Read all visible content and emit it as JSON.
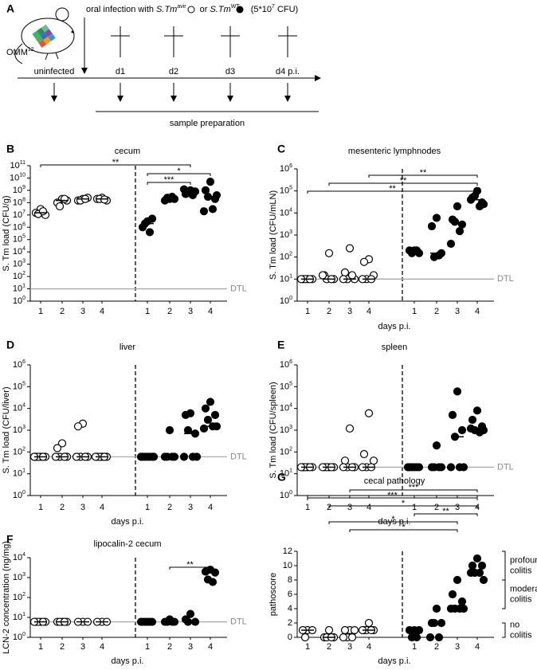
{
  "schematic": {
    "panel": "A",
    "strain_label": "OMM",
    "strain_sup": "12",
    "infection": {
      "prefix": "oral infection with ",
      "strain1": "S.Tm",
      "sup1": "avir",
      "mid": " or ",
      "strain2": "S.Tm",
      "sup2": "WT",
      "dose": "(5*10",
      "dose_exp": "7",
      "dose_unit": " CFU)"
    },
    "timepoints": [
      "uninfected",
      "d1",
      "d2",
      "d3",
      "d4 p.i."
    ],
    "sampling": "sample preparation"
  },
  "chart_data": [
    {
      "type": "dotplot",
      "panel": "B",
      "title": "cecum",
      "y_label": "S. Tm load (CFU/g)",
      "log_scale": true,
      "categories": [
        "1",
        "2",
        "3",
        "4",
        "1",
        "2",
        "3",
        "4"
      ],
      "filled": [
        false,
        false,
        false,
        false,
        true,
        true,
        true,
        true
      ],
      "values": [
        [
          30000000.0,
          15000000.0,
          10000000.0,
          12000000.0,
          20000000.0
        ],
        [
          200000000.0,
          100000000.0,
          150000000.0,
          50000000.0,
          200000000.0
        ],
        [
          200000000.0,
          150000000.0,
          250000000.0,
          150000000.0,
          200000000.0
        ],
        [
          250000000.0,
          200000000.0,
          150000000.0,
          200000000.0,
          180000000.0
        ],
        [
          3000000.0,
          1000000.0,
          5000000.0,
          2000000.0,
          400000.0
        ],
        [
          200000000.0,
          150000000.0,
          200000000.0,
          250000000.0,
          300000000.0
        ],
        [
          1000000000.0,
          500000000.0,
          800000000.0,
          600000000.0,
          400000000.0,
          1200000000.0
        ],
        [
          5000000000.0,
          1000000000.0,
          200000000.0,
          300000000.0,
          30000000.0,
          20000000.0,
          400000000.0
        ]
      ],
      "medians": [
        15000000.0,
        150000000.0,
        200000000.0,
        200000000.0,
        2000000.0,
        200000000.0,
        700000000.0,
        300000000.0
      ],
      "ylim": [
        1,
        100000000000.0
      ],
      "yticks": [
        {
          "value": 1,
          "label": "10",
          "exponent": "0"
        },
        {
          "value": 10,
          "label": "10",
          "exponent": "1"
        },
        {
          "value": 100,
          "label": "10",
          "exponent": "2"
        },
        {
          "value": 1000.0,
          "label": "10",
          "exponent": "3"
        },
        {
          "value": 10000.0,
          "label": "10",
          "exponent": "4"
        },
        {
          "value": 100000.0,
          "label": "10",
          "exponent": "5"
        },
        {
          "value": 1000000.0,
          "label": "10",
          "exponent": "6"
        },
        {
          "value": 10000000.0,
          "label": "10",
          "exponent": "7"
        },
        {
          "value": 100000000.0,
          "label": "10",
          "exponent": "8"
        },
        {
          "value": 1000000000.0,
          "label": "10",
          "exponent": "9"
        },
        {
          "value": 10000000000.0,
          "label": "10",
          "exponent": "10"
        },
        {
          "value": 100000000000.0,
          "label": "10",
          "exponent": "11"
        }
      ],
      "dtl": {
        "value": 10,
        "label": "DTL"
      },
      "brackets": [
        {
          "from": 0,
          "to": 6,
          "label": "**"
        },
        {
          "from": 4,
          "to": 7,
          "label": "*"
        },
        {
          "from": 4,
          "to": 6,
          "label": "***"
        }
      ]
    },
    {
      "type": "dotplot",
      "panel": "C",
      "title": "mesenteric lymphnodes",
      "y_label": "S. Tm load (CFU/mLN)",
      "x_label": "days p.i.",
      "log_scale": true,
      "categories": [
        "1",
        "2",
        "3",
        "4",
        "1",
        "2",
        "3",
        "4"
      ],
      "filled": [
        false,
        false,
        false,
        false,
        true,
        true,
        true,
        true
      ],
      "values": [
        [
          10,
          10,
          10,
          10,
          10,
          10
        ],
        [
          150,
          15,
          10,
          10,
          10,
          15
        ],
        [
          250,
          20,
          10,
          10,
          15,
          10
        ],
        [
          80,
          60,
          15,
          10,
          10,
          10
        ],
        [
          200,
          200,
          150,
          150,
          200
        ],
        [
          6000,
          2500,
          150,
          100,
          120
        ],
        [
          20000,
          5000,
          3000,
          4000,
          1500,
          400
        ],
        [
          100000,
          50000,
          30000,
          60000,
          20000,
          40000,
          25000
        ]
      ],
      "medians": [
        10,
        10,
        10,
        10,
        180,
        150,
        3500,
        40000
      ],
      "ylim": [
        1,
        1000000.0
      ],
      "yticks": [
        {
          "value": 1,
          "label": "10",
          "exponent": "0"
        },
        {
          "value": 10,
          "label": "10",
          "exponent": "1"
        },
        {
          "value": 100,
          "label": "10",
          "exponent": "2"
        },
        {
          "value": 1000.0,
          "label": "10",
          "exponent": "3"
        },
        {
          "value": 10000.0,
          "label": "10",
          "exponent": "4"
        },
        {
          "value": 100000.0,
          "label": "10",
          "exponent": "5"
        },
        {
          "value": 1000000.0,
          "label": "10",
          "exponent": "6"
        }
      ],
      "dtl": {
        "value": 10,
        "label": "DTL"
      },
      "brackets": [
        {
          "from": 3,
          "to": 7,
          "label": "**"
        },
        {
          "from": 1,
          "to": 7,
          "label": "**"
        },
        {
          "from": 0,
          "to": 7,
          "label": "**"
        }
      ]
    },
    {
      "type": "dotplot",
      "panel": "D",
      "title": "liver",
      "y_label": "S. Tm load (CFU/liver)",
      "x_label": "days p.i.",
      "log_scale": true,
      "categories": [
        "1",
        "2",
        "3",
        "4",
        "1",
        "2",
        "3",
        "4"
      ],
      "filled": [
        false,
        false,
        false,
        false,
        true,
        true,
        true,
        true
      ],
      "values": [
        [
          60,
          60,
          60,
          60,
          60,
          60
        ],
        [
          250,
          150,
          60,
          60,
          60,
          60
        ],
        [
          2000,
          1500,
          60,
          60,
          60,
          60
        ],
        [
          60,
          60,
          60,
          60,
          60,
          60
        ],
        [
          60,
          60,
          60,
          60,
          60,
          60,
          60
        ],
        [
          1000,
          60,
          60,
          60,
          60
        ],
        [
          6000,
          5000,
          700,
          1000,
          60,
          60,
          60
        ],
        [
          20000,
          10000,
          5000,
          3000,
          1500,
          1200,
          1500
        ]
      ],
      "medians": [
        60,
        60,
        60,
        60,
        60,
        60,
        700,
        1500
      ],
      "ylim": [
        1,
        1000000.0
      ],
      "yticks": [
        {
          "value": 1,
          "label": "10",
          "exponent": "0"
        },
        {
          "value": 10,
          "label": "10",
          "exponent": "1"
        },
        {
          "value": 100,
          "label": "10",
          "exponent": "2"
        },
        {
          "value": 1000.0,
          "label": "10",
          "exponent": "3"
        },
        {
          "value": 10000.0,
          "label": "10",
          "exponent": "4"
        },
        {
          "value": 100000.0,
          "label": "10",
          "exponent": "5"
        },
        {
          "value": 1000000.0,
          "label": "10",
          "exponent": "6"
        }
      ],
      "dtl": {
        "value": 60,
        "label": "DTL"
      },
      "brackets": []
    },
    {
      "type": "dotplot",
      "panel": "E",
      "title": "spleen",
      "y_label": "S. Tm load (CFU/spleen)",
      "x_label": "days p.i.",
      "log_scale": true,
      "categories": [
        "1",
        "2",
        "3",
        "4",
        "1",
        "2",
        "3",
        "4"
      ],
      "filled": [
        false,
        false,
        false,
        false,
        true,
        true,
        true,
        true
      ],
      "values": [
        [
          20,
          20,
          20,
          20,
          20,
          20
        ],
        [
          20,
          20,
          20,
          20,
          20,
          20
        ],
        [
          1200,
          40,
          20,
          20,
          20,
          20
        ],
        [
          6000,
          80,
          40,
          20,
          20,
          20
        ],
        [
          20,
          20,
          20,
          20,
          20,
          20
        ],
        [
          200,
          20,
          20,
          20,
          20
        ],
        [
          60000,
          5000,
          1000,
          500,
          20,
          20,
          20
        ],
        [
          8000,
          3000,
          1500,
          1000,
          800,
          1200,
          1000
        ]
      ],
      "medians": [
        20,
        20,
        20,
        20,
        20,
        20,
        500,
        1200
      ],
      "ylim": [
        1,
        1000000.0
      ],
      "yticks": [
        {
          "value": 1,
          "label": "10",
          "exponent": "0"
        },
        {
          "value": 10,
          "label": "10",
          "exponent": "1"
        },
        {
          "value": 100,
          "label": "10",
          "exponent": "2"
        },
        {
          "value": 1000.0,
          "label": "10",
          "exponent": "3"
        },
        {
          "value": 10000.0,
          "label": "10",
          "exponent": "4"
        },
        {
          "value": 100000.0,
          "label": "10",
          "exponent": "5"
        },
        {
          "value": 1000000.0,
          "label": "10",
          "exponent": "6"
        }
      ],
      "dtl": {
        "value": 20,
        "label": "DTL"
      },
      "brackets": []
    },
    {
      "type": "dotplot",
      "panel": "F",
      "title": "lipocalin-2 cecum",
      "y_label": "LCN-2 concentration (ng/mg)",
      "x_label": "days p.i.",
      "log_scale": true,
      "categories": [
        "1",
        "2",
        "3",
        "4",
        "1",
        "2",
        "3",
        "4"
      ],
      "filled": [
        false,
        false,
        false,
        false,
        true,
        true,
        true,
        true
      ],
      "values": [
        [
          6,
          6,
          6,
          6,
          6,
          6
        ],
        [
          6,
          6,
          6,
          6,
          6
        ],
        [
          6,
          6,
          6
        ],
        [
          6,
          6,
          6
        ],
        [
          6,
          6,
          6,
          6,
          6,
          6
        ],
        [
          8,
          6,
          6,
          6,
          6
        ],
        [
          15,
          8,
          6,
          6
        ],
        [
          2500,
          2000,
          1800,
          800,
          600
        ]
      ],
      "medians": [
        6,
        6,
        6,
        6,
        6,
        6,
        6,
        1800
      ],
      "ylim": [
        1,
        10000.0
      ],
      "yticks": [
        {
          "value": 1,
          "label": "10",
          "exponent": "0"
        },
        {
          "value": 10,
          "label": "10",
          "exponent": "1"
        },
        {
          "value": 100,
          "label": "10",
          "exponent": "2"
        },
        {
          "value": 1000.0,
          "label": "10",
          "exponent": "3"
        },
        {
          "value": 10000.0,
          "label": "10",
          "exponent": "4"
        }
      ],
      "dtl": {
        "value": 6,
        "label": "DTL"
      },
      "brackets": [
        {
          "from": 5,
          "to": 7,
          "label": "**"
        }
      ]
    },
    {
      "type": "dotplot",
      "panel": "G",
      "title": "cecal pathology",
      "y_label": "pathoscore",
      "x_label": "days p.i.",
      "log_scale": false,
      "categories": [
        "1",
        "2",
        "3",
        "4",
        "1",
        "2",
        "3",
        "4"
      ],
      "filled": [
        false,
        false,
        false,
        false,
        true,
        true,
        true,
        true
      ],
      "values": [
        [
          1,
          1,
          1,
          0
        ],
        [
          1,
          0,
          0,
          0,
          0
        ],
        [
          1,
          1,
          1,
          0,
          0,
          0
        ],
        [
          2,
          1,
          1,
          1,
          1,
          1
        ],
        [
          1,
          1,
          1,
          0,
          0
        ],
        [
          4,
          2,
          2,
          2,
          0,
          0
        ],
        [
          8,
          6,
          5,
          4,
          4,
          4,
          4
        ],
        [
          11,
          10,
          10,
          9,
          9,
          9,
          8
        ]
      ],
      "medians": [
        1,
        0,
        0.5,
        1,
        1,
        2,
        4,
        9
      ],
      "ylim": [
        0,
        12
      ],
      "yticks": [
        0,
        2,
        4,
        6,
        8,
        10,
        12
      ],
      "brackets": [
        {
          "from": 2,
          "to": 7,
          "label": "***"
        },
        {
          "from": 0,
          "to": 7,
          "label": "***"
        },
        {
          "from": 1,
          "to": 7,
          "label": "*"
        },
        {
          "from": 4,
          "to": 7,
          "label": "**"
        },
        {
          "from": 1,
          "to": 6,
          "label": "*"
        },
        {
          "from": 2,
          "to": 6,
          "label": "*"
        }
      ],
      "annotations": [
        {
          "lines": [
            "profound",
            "colitis"
          ],
          "range": [
            8,
            12
          ]
        },
        {
          "lines": [
            "moderate",
            "colitis"
          ],
          "range": [
            4,
            8
          ]
        },
        {
          "lines": [
            "no",
            "colitis"
          ],
          "range": [
            0,
            2
          ]
        }
      ]
    }
  ]
}
